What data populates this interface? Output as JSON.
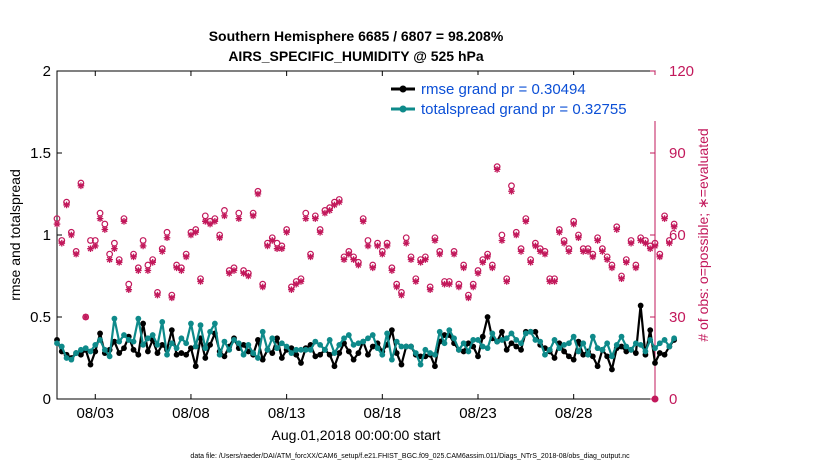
{
  "title_line1": "Southern Hemisphere 6685 / 6807 = 98.208%",
  "title_line2": "AIRS_SPECIFIC_HUMIDITY @ 525 hPa",
  "footer": "data file: /Users/raeder/DAI/ATM_forcXX/CAM6_setup/f.e21.FHIST_BGC.f09_025.CAM6assim.011/Diags_NTrS_2018-08/obs_diag_output.nc",
  "colors": {
    "rmse": "#000000",
    "spread": "#0e8a8a",
    "obs": "#c2185b",
    "legend_text": "#0b4fd6"
  },
  "chart_data": {
    "type": "line",
    "xlabel": "Aug.01,2018 00:00:00 start",
    "ylabel": "rmse and totalspread",
    "y2label": "# of obs: o=possible; ∗=evaluated",
    "xlim": [
      0,
      31.25
    ],
    "ylim": [
      0,
      2
    ],
    "y2lim": [
      0,
      120
    ],
    "x_ticks": [
      2,
      7,
      12,
      17,
      22,
      27
    ],
    "x_tick_labels": [
      "08/03",
      "08/08",
      "08/13",
      "08/18",
      "08/23",
      "08/28"
    ],
    "y_ticks": [
      0,
      0.5,
      1,
      1.5,
      2
    ],
    "y_tick_labels": [
      "0",
      "0.5",
      "1",
      "1.5",
      "2"
    ],
    "y2_ticks": [
      0,
      30,
      60,
      90,
      120
    ],
    "y2_tick_labels": [
      "0",
      "30",
      "60",
      "90",
      "120"
    ],
    "legend_position": "top-right",
    "series": [
      {
        "name": "rmse grand pr = 0.30494",
        "axis": "left",
        "values": [
          0.36,
          0.29,
          0.27,
          0.25,
          0.28,
          0.27,
          0.3,
          0.21,
          0.29,
          0.4,
          0.28,
          0.3,
          0.35,
          0.28,
          0.31,
          0.38,
          0.3,
          0.27,
          0.46,
          0.29,
          0.36,
          0.28,
          0.33,
          0.3,
          0.42,
          0.27,
          0.28,
          0.27,
          0.31,
          0.2,
          0.37,
          0.25,
          0.33,
          0.4,
          0.29,
          0.26,
          0.32,
          0.37,
          0.31,
          0.33,
          0.29,
          0.27,
          0.36,
          0.24,
          0.3,
          0.28,
          0.37,
          0.25,
          0.3,
          0.31,
          0.27,
          0.22,
          0.31,
          0.33,
          0.26,
          0.27,
          0.3,
          0.27,
          0.2,
          0.28,
          0.34,
          0.29,
          0.24,
          0.28,
          0.35,
          0.27,
          0.32,
          0.34,
          0.29,
          0.33,
          0.42,
          0.28,
          0.21,
          0.32,
          0.32,
          0.27,
          0.26,
          0.26,
          0.27,
          0.2,
          0.35,
          0.39,
          0.39,
          0.34,
          0.3,
          0.29,
          0.34,
          0.32,
          0.26,
          0.38,
          0.5,
          0.37,
          0.35,
          0.41,
          0.3,
          0.34,
          0.32,
          0.3,
          0.41,
          0.41,
          0.41,
          0.33,
          0.31,
          0.29,
          0.25,
          0.34,
          0.29,
          0.26,
          0.24,
          0.35,
          0.27,
          0.29,
          0.26,
          0.2,
          0.3,
          0.26,
          0.18,
          0.31,
          0.32,
          0.29,
          0.3,
          0.28,
          0.57,
          0.27,
          0.42,
          0.22,
          0.28,
          0.27,
          0.32,
          0.36
        ]
      },
      {
        "name": "totalspread grand pr = 0.32755",
        "axis": "left",
        "values": [
          0.34,
          0.32,
          0.25,
          0.24,
          0.28,
          0.3,
          0.31,
          0.29,
          0.33,
          0.36,
          0.3,
          0.26,
          0.49,
          0.35,
          0.39,
          0.36,
          0.35,
          0.49,
          0.33,
          0.37,
          0.39,
          0.33,
          0.47,
          0.27,
          0.34,
          0.31,
          0.37,
          0.34,
          0.46,
          0.32,
          0.45,
          0.31,
          0.41,
          0.46,
          0.27,
          0.35,
          0.3,
          0.36,
          0.34,
          0.27,
          0.33,
          0.28,
          0.25,
          0.41,
          0.3,
          0.37,
          0.31,
          0.34,
          0.32,
          0.28,
          0.3,
          0.3,
          0.3,
          0.3,
          0.35,
          0.33,
          0.3,
          0.36,
          0.28,
          0.33,
          0.37,
          0.39,
          0.33,
          0.34,
          0.35,
          0.37,
          0.39,
          0.31,
          0.27,
          0.4,
          0.24,
          0.35,
          0.32,
          0.32,
          0.32,
          0.28,
          0.21,
          0.3,
          0.28,
          0.27,
          0.41,
          0.34,
          0.42,
          0.37,
          0.3,
          0.34,
          0.29,
          0.36,
          0.36,
          0.32,
          0.31,
          0.4,
          0.35,
          0.36,
          0.37,
          0.4,
          0.36,
          0.34,
          0.4,
          0.41,
          0.36,
          0.35,
          0.27,
          0.3,
          0.36,
          0.31,
          0.33,
          0.34,
          0.38,
          0.29,
          0.34,
          0.27,
          0.38,
          0.31,
          0.3,
          0.34,
          0.26,
          0.33,
          0.38,
          0.32,
          0.3,
          0.34,
          0.33,
          0.29,
          0.36,
          0.31,
          0.34,
          0.36,
          0.32,
          0.37
        ]
      },
      {
        "name": "possible",
        "axis": "right",
        "values": [
          66,
          58,
          72,
          61,
          54,
          79,
          30,
          58,
          58,
          68,
          64,
          53,
          57,
          51,
          66,
          42,
          53,
          48,
          58,
          49,
          51,
          39,
          55,
          61,
          38,
          49,
          48,
          53,
          61,
          62,
          44,
          67,
          65,
          66,
          60,
          69,
          47,
          48,
          68,
          47,
          46,
          68,
          76,
          42,
          57,
          59,
          57,
          56,
          62,
          41,
          43,
          44,
          68,
          53,
          67,
          62,
          69,
          70,
          72,
          73,
          52,
          54,
          52,
          50,
          66,
          58,
          49,
          57,
          54,
          57,
          48,
          42,
          39,
          59,
          52,
          44,
          51,
          52,
          41,
          59,
          54,
          43,
          43,
          54,
          42,
          49,
          38,
          42,
          47,
          51,
          53,
          49,
          85,
          60,
          44,
          78,
          61,
          55,
          66,
          51,
          57,
          55,
          54,
          44,
          44,
          62,
          58,
          55,
          65,
          60,
          55,
          55,
          53,
          59,
          55,
          52,
          49,
          63,
          45,
          51,
          58,
          49,
          59,
          58,
          56,
          57,
          53,
          67,
          58,
          64
        ]
      },
      {
        "name": "evaluated",
        "axis": "right",
        "values": [
          64,
          57,
          71,
          60,
          53,
          78,
          30,
          55,
          56,
          66,
          62,
          51,
          55,
          50,
          65,
          40,
          52,
          47,
          56,
          47,
          50,
          38,
          54,
          59,
          37,
          48,
          47,
          52,
          60,
          61,
          43,
          65,
          64,
          65,
          59,
          67,
          46,
          47,
          66,
          46,
          45,
          67,
          75,
          41,
          56,
          58,
          55,
          55,
          61,
          40,
          42,
          43,
          66,
          52,
          66,
          61,
          68,
          69,
          71,
          72,
          51,
          53,
          51,
          49,
          65,
          56,
          48,
          56,
          53,
          56,
          47,
          41,
          38,
          57,
          51,
          43,
          50,
          51,
          40,
          58,
          53,
          42,
          42,
          53,
          41,
          48,
          37,
          41,
          46,
          50,
          52,
          48,
          84,
          58,
          43,
          76,
          60,
          54,
          65,
          50,
          56,
          54,
          53,
          43,
          43,
          61,
          57,
          54,
          64,
          59,
          54,
          54,
          52,
          58,
          54,
          51,
          48,
          62,
          44,
          50,
          57,
          48,
          58,
          57,
          55,
          56,
          52,
          66,
          57,
          63
        ]
      }
    ]
  }
}
